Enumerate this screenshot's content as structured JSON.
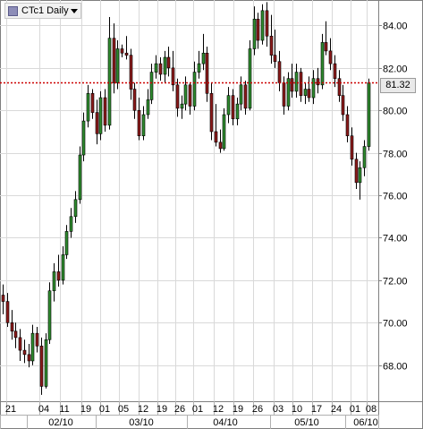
{
  "header": {
    "instrument_label": "CTc1 Daily"
  },
  "last_price_label": "81.32",
  "colors": {
    "up": "#2e8b2e",
    "down": "#8b1a1a",
    "grid": "#d9d9d9",
    "last_line": "#cc0000",
    "axis": "#7f7f7f"
  },
  "chart_data": {
    "type": "candlestick",
    "title": "CTc1 Daily",
    "ylim": [
      66.3,
      85.2
    ],
    "yticks": [
      68,
      70,
      72,
      74,
      76,
      78,
      80,
      82,
      84
    ],
    "ytick_labels": [
      "68.00",
      "70.00",
      "72.00",
      "74.00",
      "76.00",
      "78.00",
      "80.00",
      "82.00",
      "84.00"
    ],
    "last_price": 81.32,
    "grid": true,
    "x_day_labels": [
      "21",
      "04",
      "11",
      "19",
      "01",
      "05",
      "12",
      "19",
      "26",
      "01",
      "12",
      "19",
      "26",
      "03",
      "10",
      "17",
      "24",
      "01",
      "08"
    ],
    "x_month_labels": [
      "02/10",
      "03/10",
      "04/10",
      "05/10",
      "06/10"
    ],
    "series": [
      {
        "o": 71.3,
        "h": 71.8,
        "l": 70.4,
        "c": 71.0
      },
      {
        "o": 71.0,
        "h": 71.4,
        "l": 69.8,
        "c": 70.0
      },
      {
        "o": 70.0,
        "h": 70.6,
        "l": 69.2,
        "c": 69.6
      },
      {
        "o": 69.6,
        "h": 70.0,
        "l": 68.8,
        "c": 69.3
      },
      {
        "o": 69.3,
        "h": 69.7,
        "l": 68.2,
        "c": 68.7
      },
      {
        "o": 68.7,
        "h": 69.2,
        "l": 68.1,
        "c": 68.5
      },
      {
        "o": 68.5,
        "h": 69.0,
        "l": 67.9,
        "c": 68.2
      },
      {
        "o": 68.2,
        "h": 69.9,
        "l": 68.0,
        "c": 69.5
      },
      {
        "o": 69.5,
        "h": 69.8,
        "l": 68.6,
        "c": 68.9
      },
      {
        "o": 68.9,
        "h": 69.3,
        "l": 66.6,
        "c": 67.0
      },
      {
        "o": 67.0,
        "h": 69.5,
        "l": 66.9,
        "c": 69.2
      },
      {
        "o": 69.2,
        "h": 71.9,
        "l": 69.0,
        "c": 71.5
      },
      {
        "o": 71.5,
        "h": 72.8,
        "l": 71.0,
        "c": 72.4
      },
      {
        "o": 72.4,
        "h": 73.2,
        "l": 71.7,
        "c": 72.0
      },
      {
        "o": 72.0,
        "h": 73.6,
        "l": 71.8,
        "c": 73.2
      },
      {
        "o": 73.2,
        "h": 74.6,
        "l": 73.0,
        "c": 74.3
      },
      {
        "o": 74.3,
        "h": 75.4,
        "l": 74.0,
        "c": 75.0
      },
      {
        "o": 75.0,
        "h": 76.2,
        "l": 74.7,
        "c": 75.8
      },
      {
        "o": 75.8,
        "h": 78.3,
        "l": 75.6,
        "c": 77.9
      },
      {
        "o": 77.9,
        "h": 79.9,
        "l": 77.6,
        "c": 79.5
      },
      {
        "o": 79.5,
        "h": 81.2,
        "l": 79.2,
        "c": 80.8
      },
      {
        "o": 80.8,
        "h": 81.0,
        "l": 79.6,
        "c": 79.9
      },
      {
        "o": 79.9,
        "h": 80.5,
        "l": 78.4,
        "c": 78.9
      },
      {
        "o": 78.9,
        "h": 80.9,
        "l": 78.6,
        "c": 80.6
      },
      {
        "o": 80.6,
        "h": 81.0,
        "l": 79.0,
        "c": 79.3
      },
      {
        "o": 79.3,
        "h": 84.4,
        "l": 79.1,
        "c": 83.4
      },
      {
        "o": 83.4,
        "h": 84.1,
        "l": 80.8,
        "c": 81.3
      },
      {
        "o": 81.3,
        "h": 83.3,
        "l": 81.0,
        "c": 82.9
      },
      {
        "o": 82.9,
        "h": 83.1,
        "l": 82.5,
        "c": 82.7
      },
      {
        "o": 82.7,
        "h": 83.5,
        "l": 82.4,
        "c": 82.6
      },
      {
        "o": 82.6,
        "h": 82.9,
        "l": 80.5,
        "c": 81.0
      },
      {
        "o": 81.0,
        "h": 81.3,
        "l": 79.6,
        "c": 80.0
      },
      {
        "o": 80.0,
        "h": 80.6,
        "l": 78.6,
        "c": 78.8
      },
      {
        "o": 78.8,
        "h": 80.2,
        "l": 78.6,
        "c": 79.8
      },
      {
        "o": 79.8,
        "h": 81.0,
        "l": 79.6,
        "c": 80.5
      },
      {
        "o": 80.5,
        "h": 82.2,
        "l": 80.3,
        "c": 81.8
      },
      {
        "o": 81.8,
        "h": 82.6,
        "l": 81.5,
        "c": 82.2
      },
      {
        "o": 82.2,
        "h": 82.5,
        "l": 81.4,
        "c": 81.7
      },
      {
        "o": 81.7,
        "h": 82.8,
        "l": 81.3,
        "c": 82.5
      },
      {
        "o": 82.5,
        "h": 83.0,
        "l": 81.6,
        "c": 82.0
      },
      {
        "o": 82.0,
        "h": 82.8,
        "l": 80.9,
        "c": 81.2
      },
      {
        "o": 81.2,
        "h": 81.5,
        "l": 79.7,
        "c": 80.1
      },
      {
        "o": 80.1,
        "h": 80.7,
        "l": 79.6,
        "c": 80.3
      },
      {
        "o": 80.3,
        "h": 81.6,
        "l": 80.0,
        "c": 81.2
      },
      {
        "o": 81.2,
        "h": 81.3,
        "l": 79.8,
        "c": 80.2
      },
      {
        "o": 80.2,
        "h": 82.3,
        "l": 80.0,
        "c": 81.8
      },
      {
        "o": 81.8,
        "h": 82.8,
        "l": 81.5,
        "c": 82.2
      },
      {
        "o": 82.2,
        "h": 83.6,
        "l": 81.9,
        "c": 82.7
      },
      {
        "o": 82.7,
        "h": 83.0,
        "l": 80.4,
        "c": 80.8
      },
      {
        "o": 80.8,
        "h": 81.3,
        "l": 78.6,
        "c": 79.0
      },
      {
        "o": 79.0,
        "h": 80.3,
        "l": 78.3,
        "c": 78.5
      },
      {
        "o": 78.5,
        "h": 79.1,
        "l": 78.0,
        "c": 78.2
      },
      {
        "o": 78.2,
        "h": 80.1,
        "l": 78.1,
        "c": 79.8
      },
      {
        "o": 79.8,
        "h": 81.1,
        "l": 79.4,
        "c": 80.7
      },
      {
        "o": 80.7,
        "h": 81.0,
        "l": 79.3,
        "c": 79.6
      },
      {
        "o": 79.6,
        "h": 80.6,
        "l": 79.3,
        "c": 80.3
      },
      {
        "o": 80.3,
        "h": 81.6,
        "l": 80.0,
        "c": 81.2
      },
      {
        "o": 81.2,
        "h": 81.4,
        "l": 79.8,
        "c": 80.1
      },
      {
        "o": 80.1,
        "h": 83.3,
        "l": 80.0,
        "c": 82.9
      },
      {
        "o": 82.9,
        "h": 84.9,
        "l": 82.6,
        "c": 84.3
      },
      {
        "o": 84.3,
        "h": 84.6,
        "l": 82.9,
        "c": 83.3
      },
      {
        "o": 83.3,
        "h": 85.0,
        "l": 83.1,
        "c": 84.7
      },
      {
        "o": 84.7,
        "h": 85.1,
        "l": 83.0,
        "c": 83.5
      },
      {
        "o": 83.5,
        "h": 84.5,
        "l": 82.2,
        "c": 82.6
      },
      {
        "o": 82.6,
        "h": 83.8,
        "l": 82.0,
        "c": 82.3
      },
      {
        "o": 82.3,
        "h": 82.8,
        "l": 80.9,
        "c": 81.3
      },
      {
        "o": 81.3,
        "h": 81.6,
        "l": 79.8,
        "c": 80.2
      },
      {
        "o": 80.2,
        "h": 81.8,
        "l": 80.0,
        "c": 81.5
      },
      {
        "o": 81.5,
        "h": 82.2,
        "l": 80.6,
        "c": 80.9
      },
      {
        "o": 80.9,
        "h": 82.2,
        "l": 80.6,
        "c": 81.8
      },
      {
        "o": 81.8,
        "h": 82.0,
        "l": 80.4,
        "c": 80.7
      },
      {
        "o": 80.7,
        "h": 81.3,
        "l": 80.3,
        "c": 81.0
      },
      {
        "o": 81.0,
        "h": 81.6,
        "l": 80.4,
        "c": 80.6
      },
      {
        "o": 80.6,
        "h": 81.9,
        "l": 80.3,
        "c": 81.5
      },
      {
        "o": 81.5,
        "h": 82.0,
        "l": 80.8,
        "c": 81.2
      },
      {
        "o": 81.2,
        "h": 83.6,
        "l": 81.0,
        "c": 83.2
      },
      {
        "o": 83.2,
        "h": 84.2,
        "l": 82.6,
        "c": 82.8
      },
      {
        "o": 82.8,
        "h": 83.4,
        "l": 81.9,
        "c": 82.2
      },
      {
        "o": 82.2,
        "h": 82.6,
        "l": 81.1,
        "c": 81.5
      },
      {
        "o": 81.5,
        "h": 81.9,
        "l": 80.4,
        "c": 80.7
      },
      {
        "o": 80.7,
        "h": 81.2,
        "l": 79.5,
        "c": 79.8
      },
      {
        "o": 79.8,
        "h": 80.2,
        "l": 78.5,
        "c": 78.8
      },
      {
        "o": 78.8,
        "h": 79.2,
        "l": 77.4,
        "c": 77.7
      },
      {
        "o": 77.7,
        "h": 78.0,
        "l": 76.3,
        "c": 76.6
      },
      {
        "o": 76.6,
        "h": 77.6,
        "l": 75.8,
        "c": 77.3
      },
      {
        "o": 77.3,
        "h": 78.6,
        "l": 76.9,
        "c": 78.3
      },
      {
        "o": 78.3,
        "h": 81.5,
        "l": 78.1,
        "c": 81.3
      }
    ]
  }
}
